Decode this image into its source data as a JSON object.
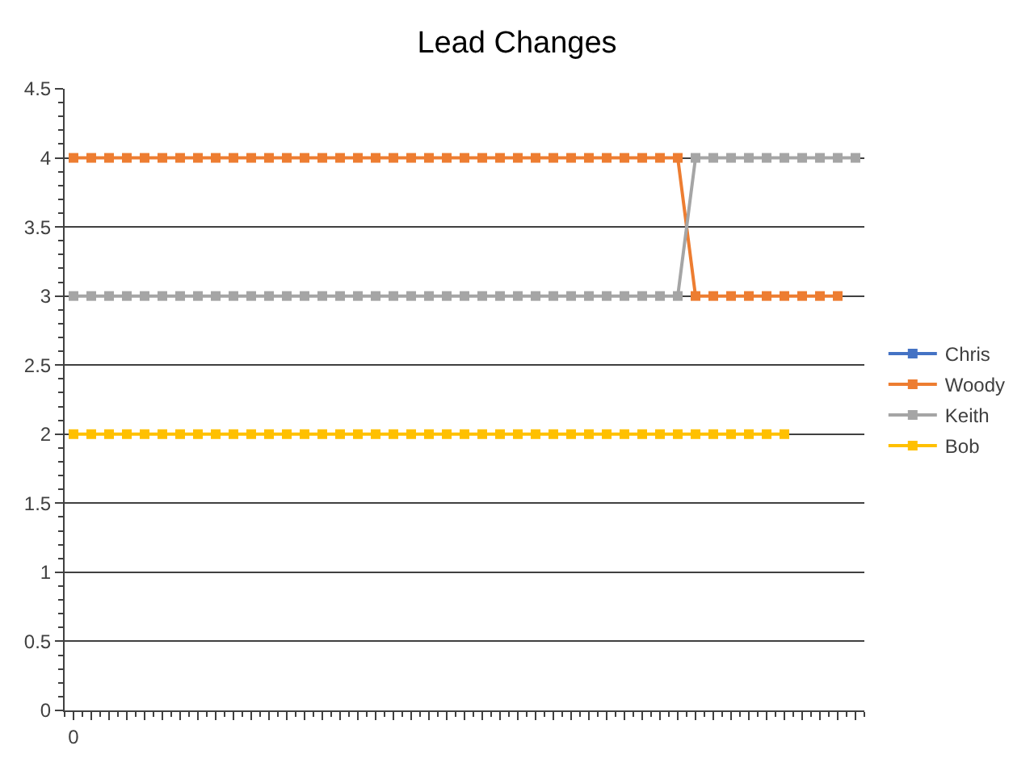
{
  "chart_data": {
    "type": "line",
    "title": "Lead Changes",
    "categories": [
      "0",
      null,
      null,
      null,
      null,
      null,
      null,
      null,
      null,
      null,
      null,
      null,
      null,
      null,
      null,
      null,
      null,
      null,
      null,
      null,
      null,
      null,
      null,
      null,
      null,
      null,
      null,
      null,
      null,
      null,
      null,
      null,
      null,
      null,
      null,
      null,
      null,
      null,
      null,
      null,
      null,
      null,
      null,
      null,
      null
    ],
    "series": [
      {
        "name": "Chris",
        "color": "#4472c4",
        "values": [
          null,
          null,
          null,
          null,
          null,
          null,
          null,
          null,
          null,
          null,
          null,
          null,
          null,
          null,
          null,
          null,
          null,
          null,
          null,
          null,
          null,
          null,
          null,
          null,
          null,
          null,
          null,
          null,
          null,
          null,
          null,
          null,
          null,
          null,
          null,
          null,
          null,
          null,
          null,
          null,
          null,
          null,
          null,
          null,
          null
        ]
      },
      {
        "name": "Woody",
        "color": "#ed7d31",
        "values": [
          4,
          4,
          4,
          4,
          4,
          4,
          4,
          4,
          4,
          4,
          4,
          4,
          4,
          4,
          4,
          4,
          4,
          4,
          4,
          4,
          4,
          4,
          4,
          4,
          4,
          4,
          4,
          4,
          4,
          4,
          4,
          4,
          4,
          4,
          4,
          3,
          3,
          3,
          3,
          3,
          3,
          3,
          3,
          3,
          null
        ]
      },
      {
        "name": "Keith",
        "color": "#a5a5a5",
        "values": [
          3,
          3,
          3,
          3,
          3,
          3,
          3,
          3,
          3,
          3,
          3,
          3,
          3,
          3,
          3,
          3,
          3,
          3,
          3,
          3,
          3,
          3,
          3,
          3,
          3,
          3,
          3,
          3,
          3,
          3,
          3,
          3,
          3,
          3,
          3,
          4,
          4,
          4,
          4,
          4,
          4,
          4,
          4,
          4,
          4
        ]
      },
      {
        "name": "Bob",
        "color": "#ffc000",
        "values": [
          2,
          2,
          2,
          2,
          2,
          2,
          2,
          2,
          2,
          2,
          2,
          2,
          2,
          2,
          2,
          2,
          2,
          2,
          2,
          2,
          2,
          2,
          2,
          2,
          2,
          2,
          2,
          2,
          2,
          2,
          2,
          2,
          2,
          2,
          2,
          2,
          2,
          2,
          2,
          2,
          2,
          null,
          null,
          null,
          null
        ]
      }
    ],
    "ylim": [
      0,
      4.5
    ],
    "yticks": [
      0,
      0.5,
      1,
      1.5,
      2,
      2.5,
      3,
      3.5,
      4,
      4.5
    ],
    "grid": "y",
    "legend": "right",
    "marker": "square",
    "line_style": "solid"
  }
}
